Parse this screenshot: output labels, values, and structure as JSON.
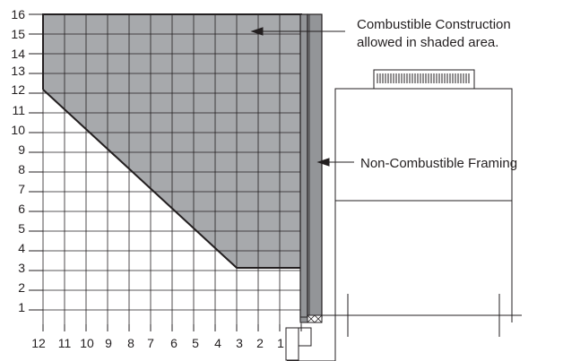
{
  "diagram": {
    "y_axis_labels": [
      "1",
      "2",
      "3",
      "4",
      "5",
      "6",
      "7",
      "8",
      "9",
      "10",
      "11",
      "12",
      "13",
      "14",
      "15",
      "16"
    ],
    "x_axis_labels": [
      "12",
      "11",
      "10",
      "9",
      "8",
      "7",
      "6",
      "5",
      "4",
      "3",
      "2",
      "1"
    ],
    "callouts": {
      "combustible_line1": "Combustible Construction",
      "combustible_line2": "allowed in shaded area.",
      "framing": "Non-Combustible Framing"
    },
    "colors": {
      "shaded_area": "#a7a9ac",
      "framing": "#939598",
      "line": "#231f20",
      "background": "#ffffff"
    }
  }
}
